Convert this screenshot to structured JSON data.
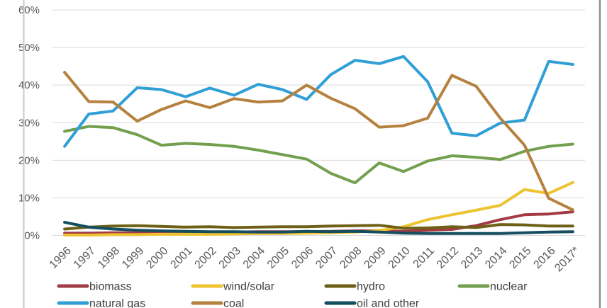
{
  "window": {
    "background": "#ffffff",
    "left_border_color": "#c9c9c9",
    "right_border_color": "#8f8f8f"
  },
  "style": {
    "grid_color": "#d9d9d9",
    "axis_text_color": "#595959",
    "legend_text_color": "#3f3f3f",
    "line_width": 4
  },
  "chart_data": {
    "type": "line",
    "title": "",
    "xlabel": "",
    "ylabel": "",
    "ylim": [
      0,
      60
    ],
    "ytick_step": 10,
    "yticks": [
      "0%",
      "10%",
      "20%",
      "30%",
      "40%",
      "50%",
      "60%"
    ],
    "grid": true,
    "legend_position": "bottom",
    "categories": [
      "1996",
      "1997",
      "1998",
      "1999",
      "2000",
      "2001",
      "2002",
      "2003",
      "2004",
      "2005",
      "2006",
      "2007",
      "2008",
      "2009",
      "2010",
      "2011",
      "2012",
      "2013",
      "2014",
      "2015",
      "2016",
      "2017*"
    ],
    "series": [
      {
        "name": "biomass",
        "color": "#a23b44",
        "values": [
          0.6,
          0.6,
          0.7,
          0.7,
          0.8,
          0.8,
          0.9,
          0.9,
          1.0,
          1.0,
          1.0,
          1.1,
          1.2,
          1.3,
          1.1,
          1.4,
          1.6,
          2.6,
          4.2,
          5.5,
          5.7,
          6.3
        ]
      },
      {
        "name": "wind/solar",
        "color": "#edc32f",
        "values": [
          0.1,
          0.1,
          0.2,
          0.2,
          0.3,
          0.3,
          0.3,
          0.4,
          0.5,
          0.5,
          0.6,
          0.7,
          0.9,
          1.3,
          2.3,
          4.2,
          5.5,
          6.7,
          8.0,
          12.2,
          11.2,
          14.1
        ]
      },
      {
        "name": "hydro",
        "color": "#6f6018",
        "values": [
          1.7,
          2.2,
          2.5,
          2.6,
          2.4,
          2.2,
          2.3,
          2.1,
          2.2,
          2.3,
          2.3,
          2.5,
          2.6,
          2.7,
          1.9,
          2.0,
          2.3,
          2.1,
          2.9,
          2.8,
          2.5,
          2.5
        ]
      },
      {
        "name": "nuclear",
        "color": "#72a04e",
        "values": [
          27.7,
          29.0,
          28.7,
          26.8,
          24.0,
          24.5,
          24.2,
          23.7,
          22.7,
          21.5,
          20.3,
          16.5,
          14.0,
          19.3,
          17.0,
          19.8,
          21.2,
          20.8,
          20.2,
          22.4,
          23.7,
          24.3
        ]
      },
      {
        "name": "natural gas",
        "color": "#2f9fd6",
        "values": [
          23.7,
          32.3,
          33.1,
          39.3,
          38.8,
          36.9,
          39.2,
          37.3,
          40.2,
          38.8,
          36.2,
          42.8,
          46.6,
          45.7,
          47.6,
          40.9,
          27.2,
          26.5,
          29.9,
          30.7,
          46.3,
          45.5
        ]
      },
      {
        "name": "coal",
        "color": "#b5813e",
        "values": [
          43.4,
          35.6,
          35.5,
          30.4,
          33.5,
          35.8,
          34.0,
          36.4,
          35.5,
          35.8,
          40.0,
          36.5,
          33.7,
          28.8,
          29.2,
          31.2,
          42.6,
          39.7,
          31.2,
          24.0,
          9.9,
          6.8
        ]
      },
      {
        "name": "oil and other",
        "color": "#154e5f",
        "values": [
          3.5,
          2.2,
          1.7,
          1.4,
          1.2,
          1.1,
          1.0,
          1.0,
          0.9,
          0.9,
          1.1,
          1.0,
          1.1,
          0.9,
          0.6,
          0.5,
          0.5,
          0.5,
          0.5,
          0.7,
          0.9,
          1.0
        ]
      }
    ],
    "legend_rows": [
      [
        0,
        1,
        2,
        3
      ],
      [
        4,
        5,
        6
      ]
    ]
  }
}
